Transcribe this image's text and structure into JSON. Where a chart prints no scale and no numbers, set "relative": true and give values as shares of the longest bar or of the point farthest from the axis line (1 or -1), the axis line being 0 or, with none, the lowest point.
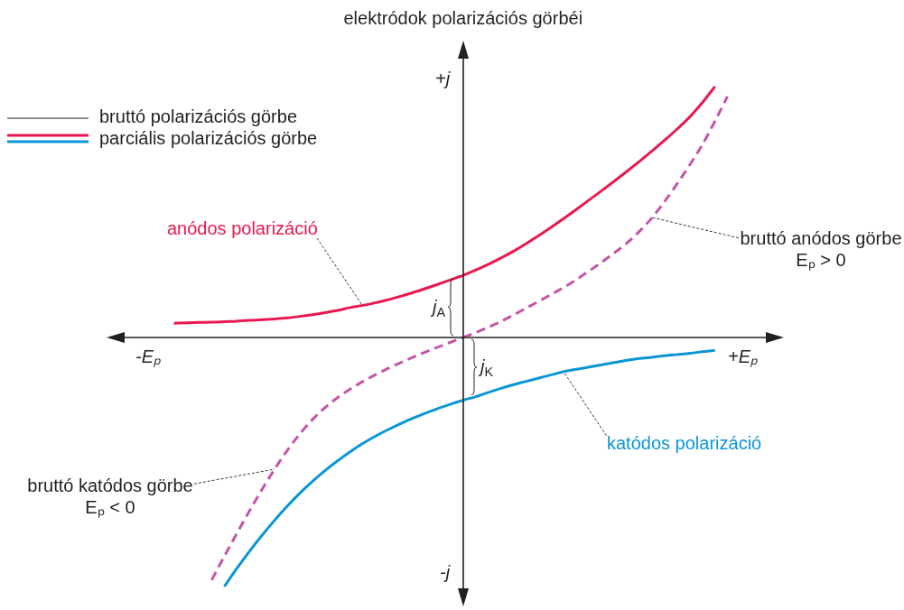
{
  "chart_data": {
    "type": "line",
    "relative": true,
    "marker": "none",
    "title": "elektródok polarizációs görbéi",
    "categories": [
      null,
      null,
      null,
      null,
      null,
      null,
      null,
      null,
      null,
      null,
      null,
      null,
      null,
      null,
      null,
      null,
      null,
      null,
      null,
      null,
      null,
      null,
      null,
      null,
      null,
      null,
      null,
      null,
      null,
      null,
      null,
      null,
      null,
      null,
      null,
      null,
      null,
      null,
      null,
      null,
      null,
      null,
      null,
      null,
      null,
      null,
      null
    ],
    "series": [
      {
        "name": "anódos polarizáció",
        "color": "#e8194f",
        "values": [
          0.057,
          0.058,
          0.06,
          0.061,
          0.063,
          0.065,
          0.068,
          0.071,
          0.074,
          0.078,
          0.084,
          0.091,
          0.099,
          0.108,
          0.119,
          0.128,
          0.138,
          0.15,
          0.164,
          0.179,
          0.195,
          0.212,
          0.23,
          0.248,
          0.269,
          0.292,
          0.317,
          0.344,
          0.374,
          0.406,
          0.44,
          0.475,
          0.511,
          0.548,
          0.585,
          0.623,
          0.662,
          0.702,
          0.743,
          0.786,
          0.831,
          0.879,
          0.936,
          1,
          null,
          null,
          null
        ]
      },
      {
        "name": "katódos polarizáció",
        "color": "#0a96d6",
        "values": [
          null,
          null,
          null,
          null,
          -0.993,
          -0.921,
          -0.853,
          -0.789,
          -0.729,
          -0.673,
          -0.621,
          -0.574,
          -0.531,
          -0.492,
          -0.456,
          -0.423,
          -0.394,
          -0.368,
          -0.344,
          -0.322,
          -0.302,
          -0.283,
          -0.266,
          -0.25,
          -0.236,
          -0.219,
          -0.203,
          -0.188,
          -0.175,
          -0.162,
          -0.149,
          -0.136,
          -0.127,
          -0.118,
          -0.109,
          -0.1,
          -0.091,
          -0.084,
          -0.079,
          -0.073,
          -0.068,
          -0.063,
          -0.057,
          -0.051,
          null,
          null,
          null
        ]
      },
      {
        "name": "bruttó anódos görbe Eₚ > 0",
        "color": "#c455a8",
        "line_style": "dashed",
        "values": [
          null,
          null,
          null,
          null,
          null,
          null,
          null,
          null,
          null,
          null,
          null,
          null,
          null,
          null,
          null,
          null,
          null,
          null,
          null,
          null,
          null,
          null,
          null,
          0,
          0.02,
          0.041,
          0.064,
          0.09,
          0.117,
          0.144,
          0.172,
          0.2,
          0.231,
          0.265,
          0.3,
          0.337,
          0.376,
          0.423,
          0.477,
          0.542,
          0.613,
          0.688,
          0.768,
          0.862,
          0.961,
          null,
          null
        ]
      },
      {
        "name": "bruttó katódos görbe Eₚ < 0",
        "color": "#c455a8",
        "line_style": "dashed",
        "values": [
          null,
          null,
          null,
          -0.967,
          -0.873,
          -0.781,
          -0.692,
          -0.606,
          -0.525,
          -0.451,
          -0.385,
          -0.328,
          -0.28,
          -0.24,
          -0.206,
          -0.176,
          -0.149,
          -0.124,
          -0.101,
          -0.079,
          -0.058,
          -0.038,
          -0.019,
          0,
          null,
          null,
          null,
          null,
          null,
          null,
          null,
          null,
          null,
          null,
          null,
          null,
          null,
          null,
          null,
          null,
          null,
          null,
          null,
          null,
          null,
          null,
          null
        ]
      }
    ],
    "annotations": [
      "bruttó polarizációs görbe",
      "parciális polarizációs görbe",
      "+j",
      "-j",
      "-Eₚ",
      "+Eₚ",
      "j$_{A}$",
      "j$_{K}$"
    ]
  }
}
